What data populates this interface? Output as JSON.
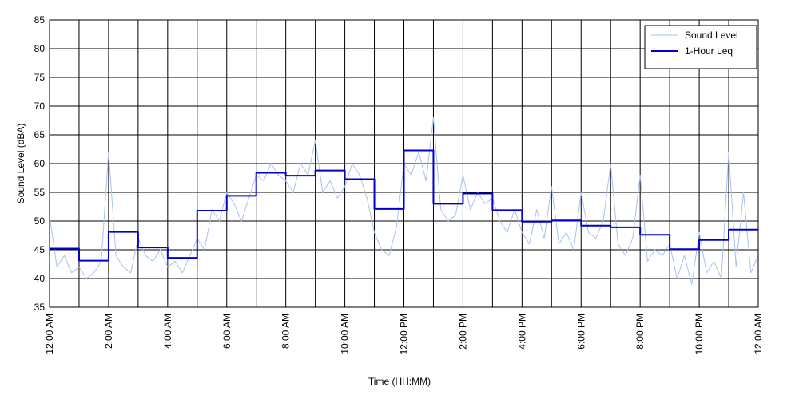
{
  "chart_data": {
    "type": "line",
    "xlabel": "Time (HH:MM)",
    "ylabel": "Sound Level (dBA)",
    "xlim": [
      0,
      24
    ],
    "ylim": [
      35,
      85
    ],
    "xticks": [
      {
        "value": 0,
        "label": "12:00 AM"
      },
      {
        "value": 2,
        "label": "2:00 AM"
      },
      {
        "value": 4,
        "label": "4:00 AM"
      },
      {
        "value": 6,
        "label": "6:00 AM"
      },
      {
        "value": 8,
        "label": "8:00 AM"
      },
      {
        "value": 10,
        "label": "10:00 AM"
      },
      {
        "value": 12,
        "label": "12:00 PM"
      },
      {
        "value": 14,
        "label": "2:00 PM"
      },
      {
        "value": 16,
        "label": "4:00 PM"
      },
      {
        "value": 18,
        "label": "6:00 PM"
      },
      {
        "value": 20,
        "label": "8:00 PM"
      },
      {
        "value": 22,
        "label": "10:00 PM"
      },
      {
        "value": 24,
        "label": "12:00 AM"
      }
    ],
    "xgrid_minor": [
      1,
      3,
      5,
      7,
      9,
      11,
      13,
      15,
      17,
      19,
      21,
      23
    ],
    "yticks": [
      35,
      40,
      45,
      50,
      55,
      60,
      65,
      70,
      75,
      80,
      85
    ],
    "grid": true,
    "legend": "upper right",
    "series": [
      {
        "name": "Sound Level",
        "color": "#a9c1f2",
        "x": [
          0,
          0.25,
          0.5,
          0.75,
          1,
          1.25,
          1.5,
          1.75,
          2,
          2.25,
          2.5,
          2.75,
          3,
          3.25,
          3.5,
          3.75,
          4,
          4.25,
          4.5,
          4.75,
          5,
          5.25,
          5.5,
          5.75,
          6,
          6.25,
          6.5,
          6.75,
          7,
          7.25,
          7.5,
          7.75,
          8,
          8.25,
          8.5,
          8.75,
          9,
          9.25,
          9.5,
          9.75,
          10,
          10.25,
          10.5,
          10.75,
          11,
          11.25,
          11.5,
          11.75,
          12,
          12.25,
          12.5,
          12.75,
          13,
          13.25,
          13.5,
          13.75,
          14,
          14.25,
          14.5,
          14.75,
          15,
          15.25,
          15.5,
          15.75,
          16,
          16.25,
          16.5,
          16.75,
          17,
          17.25,
          17.5,
          17.75,
          18,
          18.25,
          18.5,
          18.75,
          19,
          19.25,
          19.5,
          19.75,
          20,
          20.25,
          20.5,
          20.75,
          21,
          21.25,
          21.5,
          21.75,
          22,
          22.25,
          22.5,
          22.75,
          23,
          23.25,
          23.5,
          23.75,
          24
        ],
        "values": [
          51,
          42,
          44,
          41,
          42,
          40,
          41,
          43,
          62,
          44,
          42,
          41,
          47,
          44,
          43,
          45,
          42,
          43,
          41,
          44,
          47,
          45,
          52,
          50,
          55,
          53,
          50,
          54,
          58,
          57,
          60,
          58,
          57,
          55,
          60,
          58,
          64,
          55,
          57,
          54,
          56,
          60,
          58,
          54,
          48,
          45,
          44,
          49,
          60,
          58,
          62,
          57,
          68,
          52,
          50,
          51,
          58,
          52,
          55,
          53,
          54,
          50,
          48,
          52,
          48,
          46,
          52,
          47,
          56,
          46,
          48,
          45,
          55,
          48,
          47,
          50,
          60,
          46,
          44,
          47,
          58,
          43,
          45,
          44,
          46,
          40,
          44,
          39,
          48,
          41,
          43,
          40,
          62,
          42,
          55,
          41,
          44
        ]
      },
      {
        "name": "1-Hour Leq",
        "color": "#0000cc",
        "step": "post",
        "x": [
          0,
          1,
          2,
          3,
          4,
          5,
          6,
          7,
          8,
          9,
          10,
          11,
          12,
          13,
          14,
          15,
          16,
          17,
          18,
          19,
          20,
          21,
          22,
          23
        ],
        "values": [
          45.2,
          43.1,
          48.1,
          45.4,
          43.6,
          51.8,
          54.4,
          58.4,
          57.9,
          58.8,
          57.3,
          52.1,
          62.3,
          53.0,
          54.8,
          51.9,
          49.9,
          50.1,
          49.2,
          48.9,
          47.6,
          45.1,
          46.7,
          48.5
        ]
      }
    ]
  }
}
